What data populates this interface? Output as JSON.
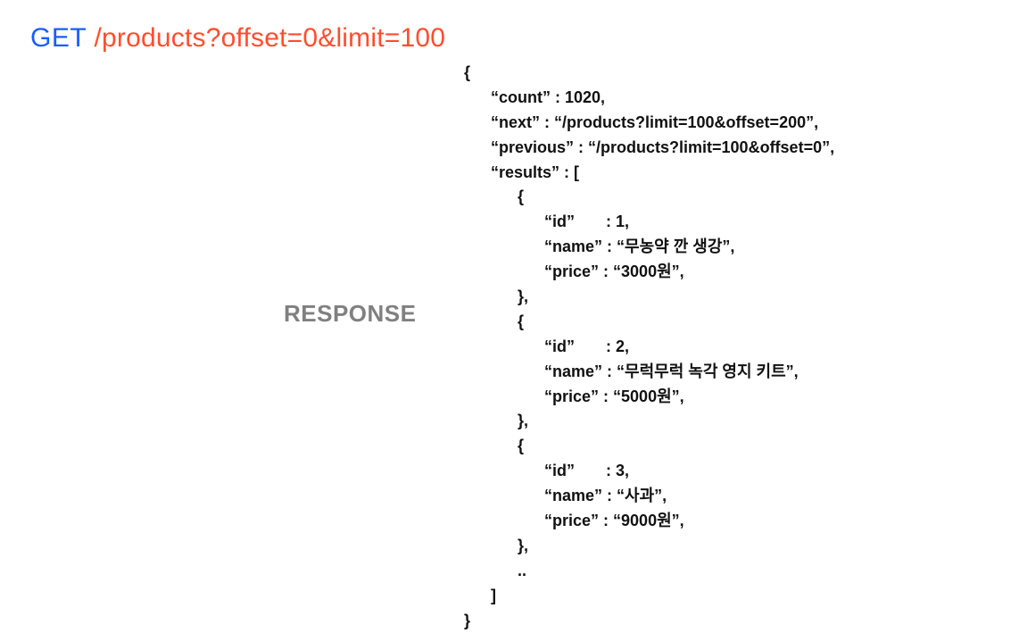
{
  "request": {
    "method": "GET",
    "method_color": "#1a5cff",
    "path": "/products?offset=0&limit=100",
    "path_color": "#ff4d2e",
    "fontsize": 30
  },
  "response_label": {
    "text": "RESPONSE",
    "color": "#808080",
    "fontsize": 26,
    "weight": 700
  },
  "json": {
    "color": "#111111",
    "fontsize": 18,
    "weight": 700,
    "line_height": 1.55,
    "indent": "      ",
    "lines": [
      "{",
      "      “count” : 1020,",
      "      “next” : “/products?limit=100&offset=200”,",
      "      “previous” : “/products?limit=100&offset=0”,",
      "      “results” : [",
      "            {",
      "                  “id”       : 1,",
      "                  “name” : “무농약 깐 생강”,",
      "                  “price” : “3000원”,",
      "            },",
      "            {",
      "                  “id”       : 2,",
      "                  “name” : “무럭무럭 녹각 영지 키트”,",
      "                  “price” : “5000원”,",
      "            },",
      "            {",
      "                  “id”       : 3,",
      "                  “name” : “사과”,",
      "                  “price” : “9000원”,",
      "            },",
      "            ..",
      "      ]",
      "}"
    ]
  },
  "background_color": "#ffffff"
}
